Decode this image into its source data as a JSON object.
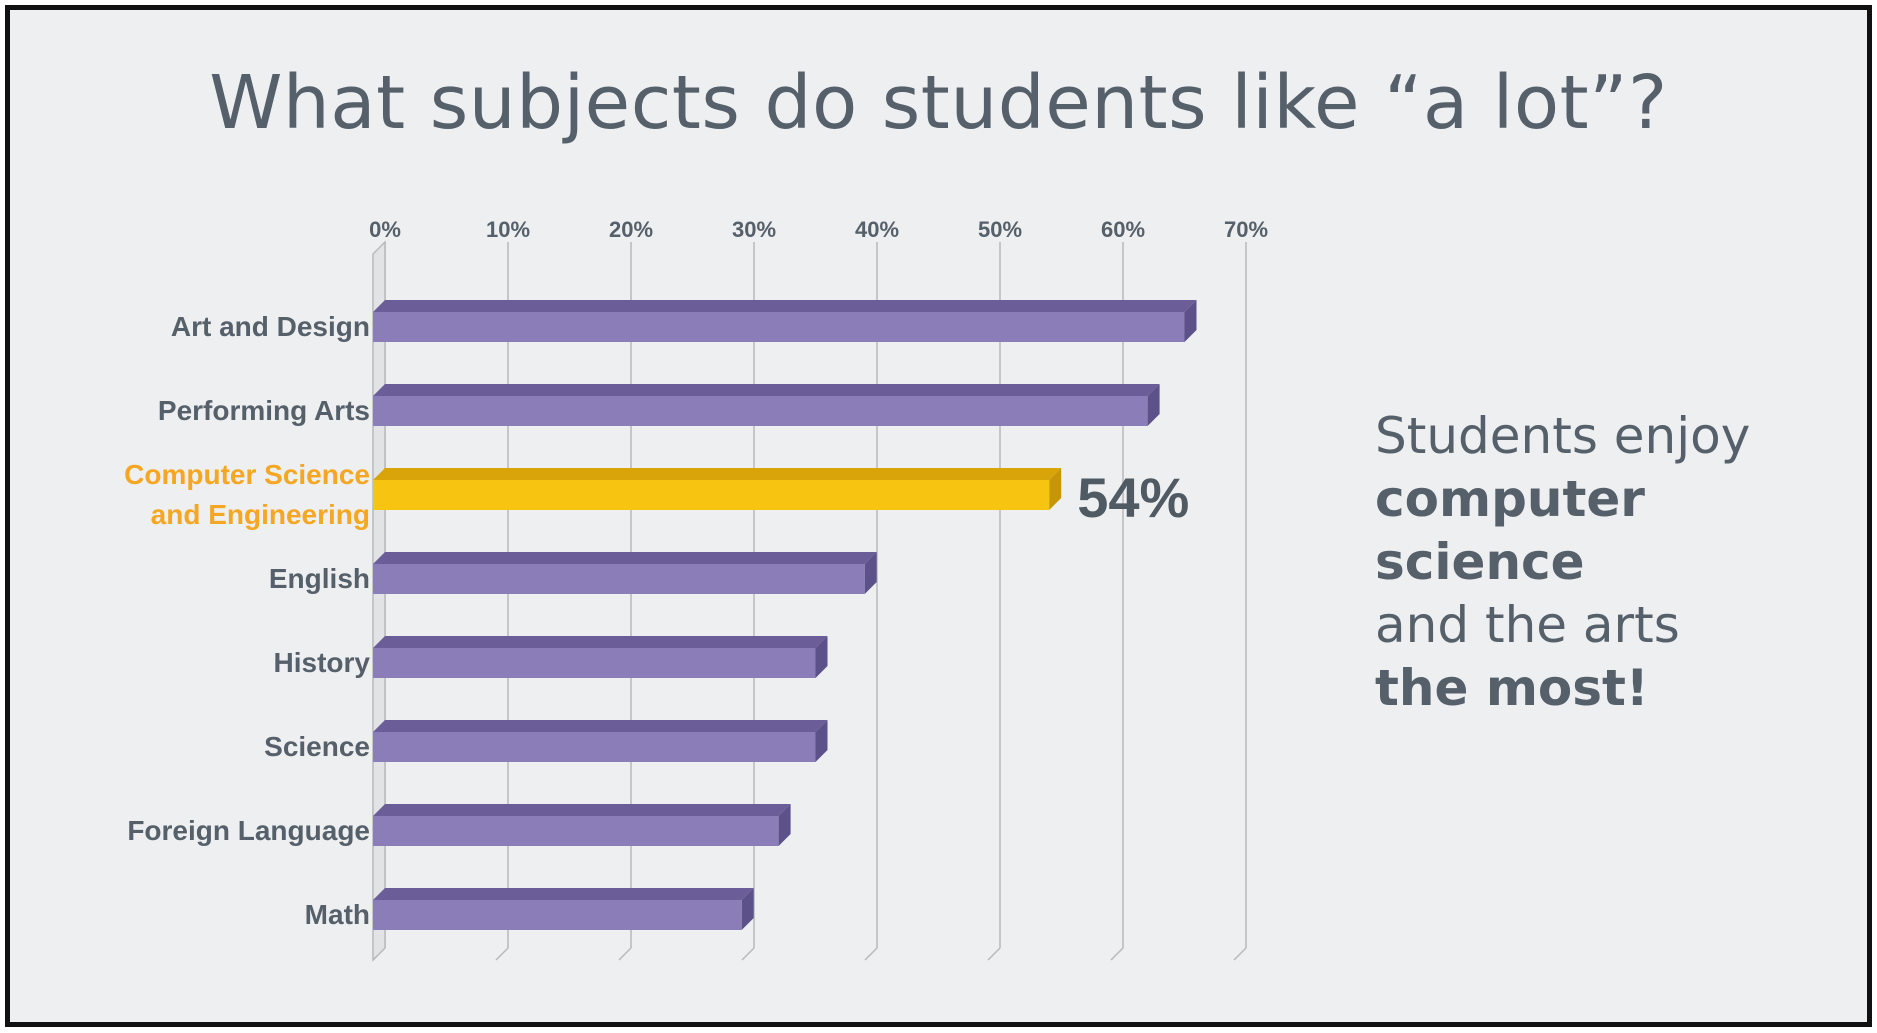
{
  "title": "What subjects do students like “a lot”?",
  "callout": {
    "line1": "Students enjoy",
    "line2": "computer",
    "line3": "science",
    "line4": "and the arts",
    "line5": "the most!"
  },
  "colors": {
    "bar": "#8a7db8",
    "highlight_bar": "#f6c411",
    "highlight_label": "#f5a623",
    "text": "#55606a"
  },
  "chart_data": {
    "type": "bar",
    "orientation": "horizontal",
    "title": "What subjects do students like “a lot”?",
    "categories": [
      "Art and Design",
      "Performing Arts",
      "Computer Science and Engineering",
      "English",
      "History",
      "Science",
      "Foreign Language",
      "Math"
    ],
    "category_label_lines": [
      [
        "Art and Design"
      ],
      [
        "Performing Arts"
      ],
      [
        "Computer Science",
        "and Engineering"
      ],
      [
        "English"
      ],
      [
        "History"
      ],
      [
        "Science"
      ],
      [
        "Foreign Language"
      ],
      [
        "Math"
      ]
    ],
    "values": [
      65,
      62,
      54,
      39,
      35,
      35,
      32,
      29
    ],
    "highlight_index": 2,
    "data_labels": {
      "2": "54%"
    },
    "xticks": [
      "0%",
      "10%",
      "20%",
      "30%",
      "40%",
      "50%",
      "60%",
      "70%"
    ],
    "xlim": [
      0,
      70
    ],
    "grid": true,
    "xlabel": "",
    "ylabel": ""
  }
}
